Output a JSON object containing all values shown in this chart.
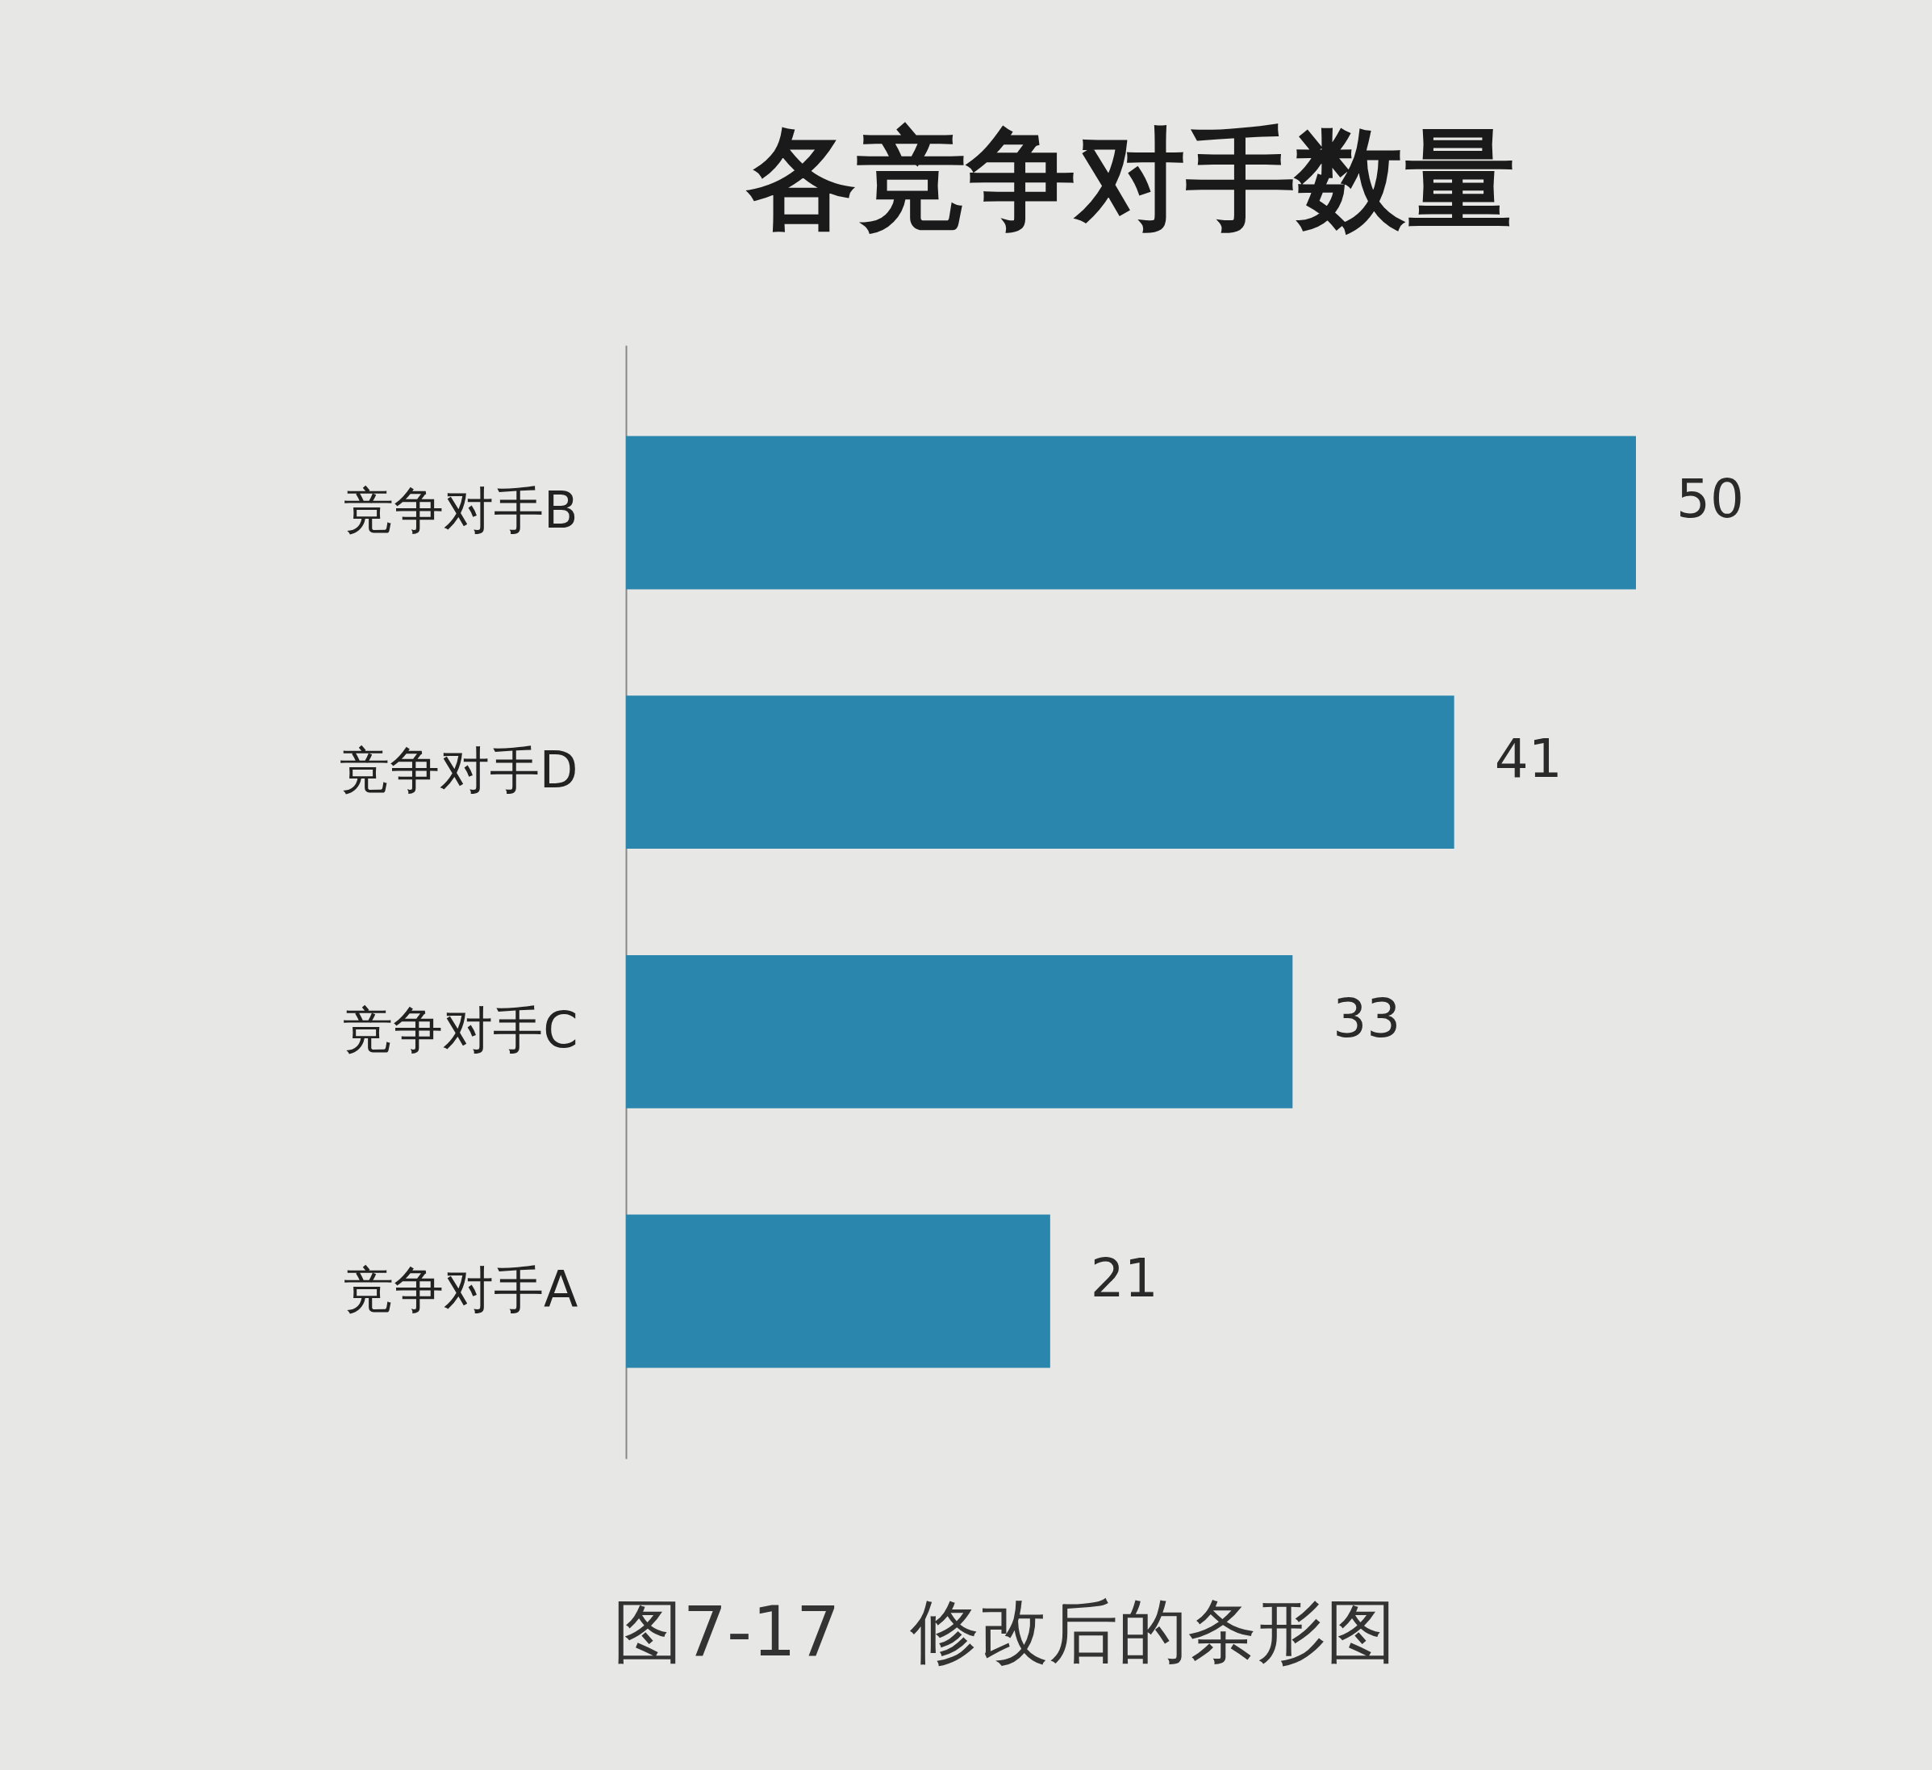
{
  "chart_data": {
    "type": "bar",
    "title": "各竞争对手数量",
    "orientation": "horizontal",
    "categories": [
      "竞争对手B",
      "竞争对手D",
      "竞争对手C",
      "竞争对手A"
    ],
    "values": [
      50,
      41,
      33,
      21
    ],
    "color": "#2a86ac",
    "data_labels": true,
    "tick_labels": "y",
    "annotations": [
      "图7-17　修改后的条形图"
    ]
  }
}
